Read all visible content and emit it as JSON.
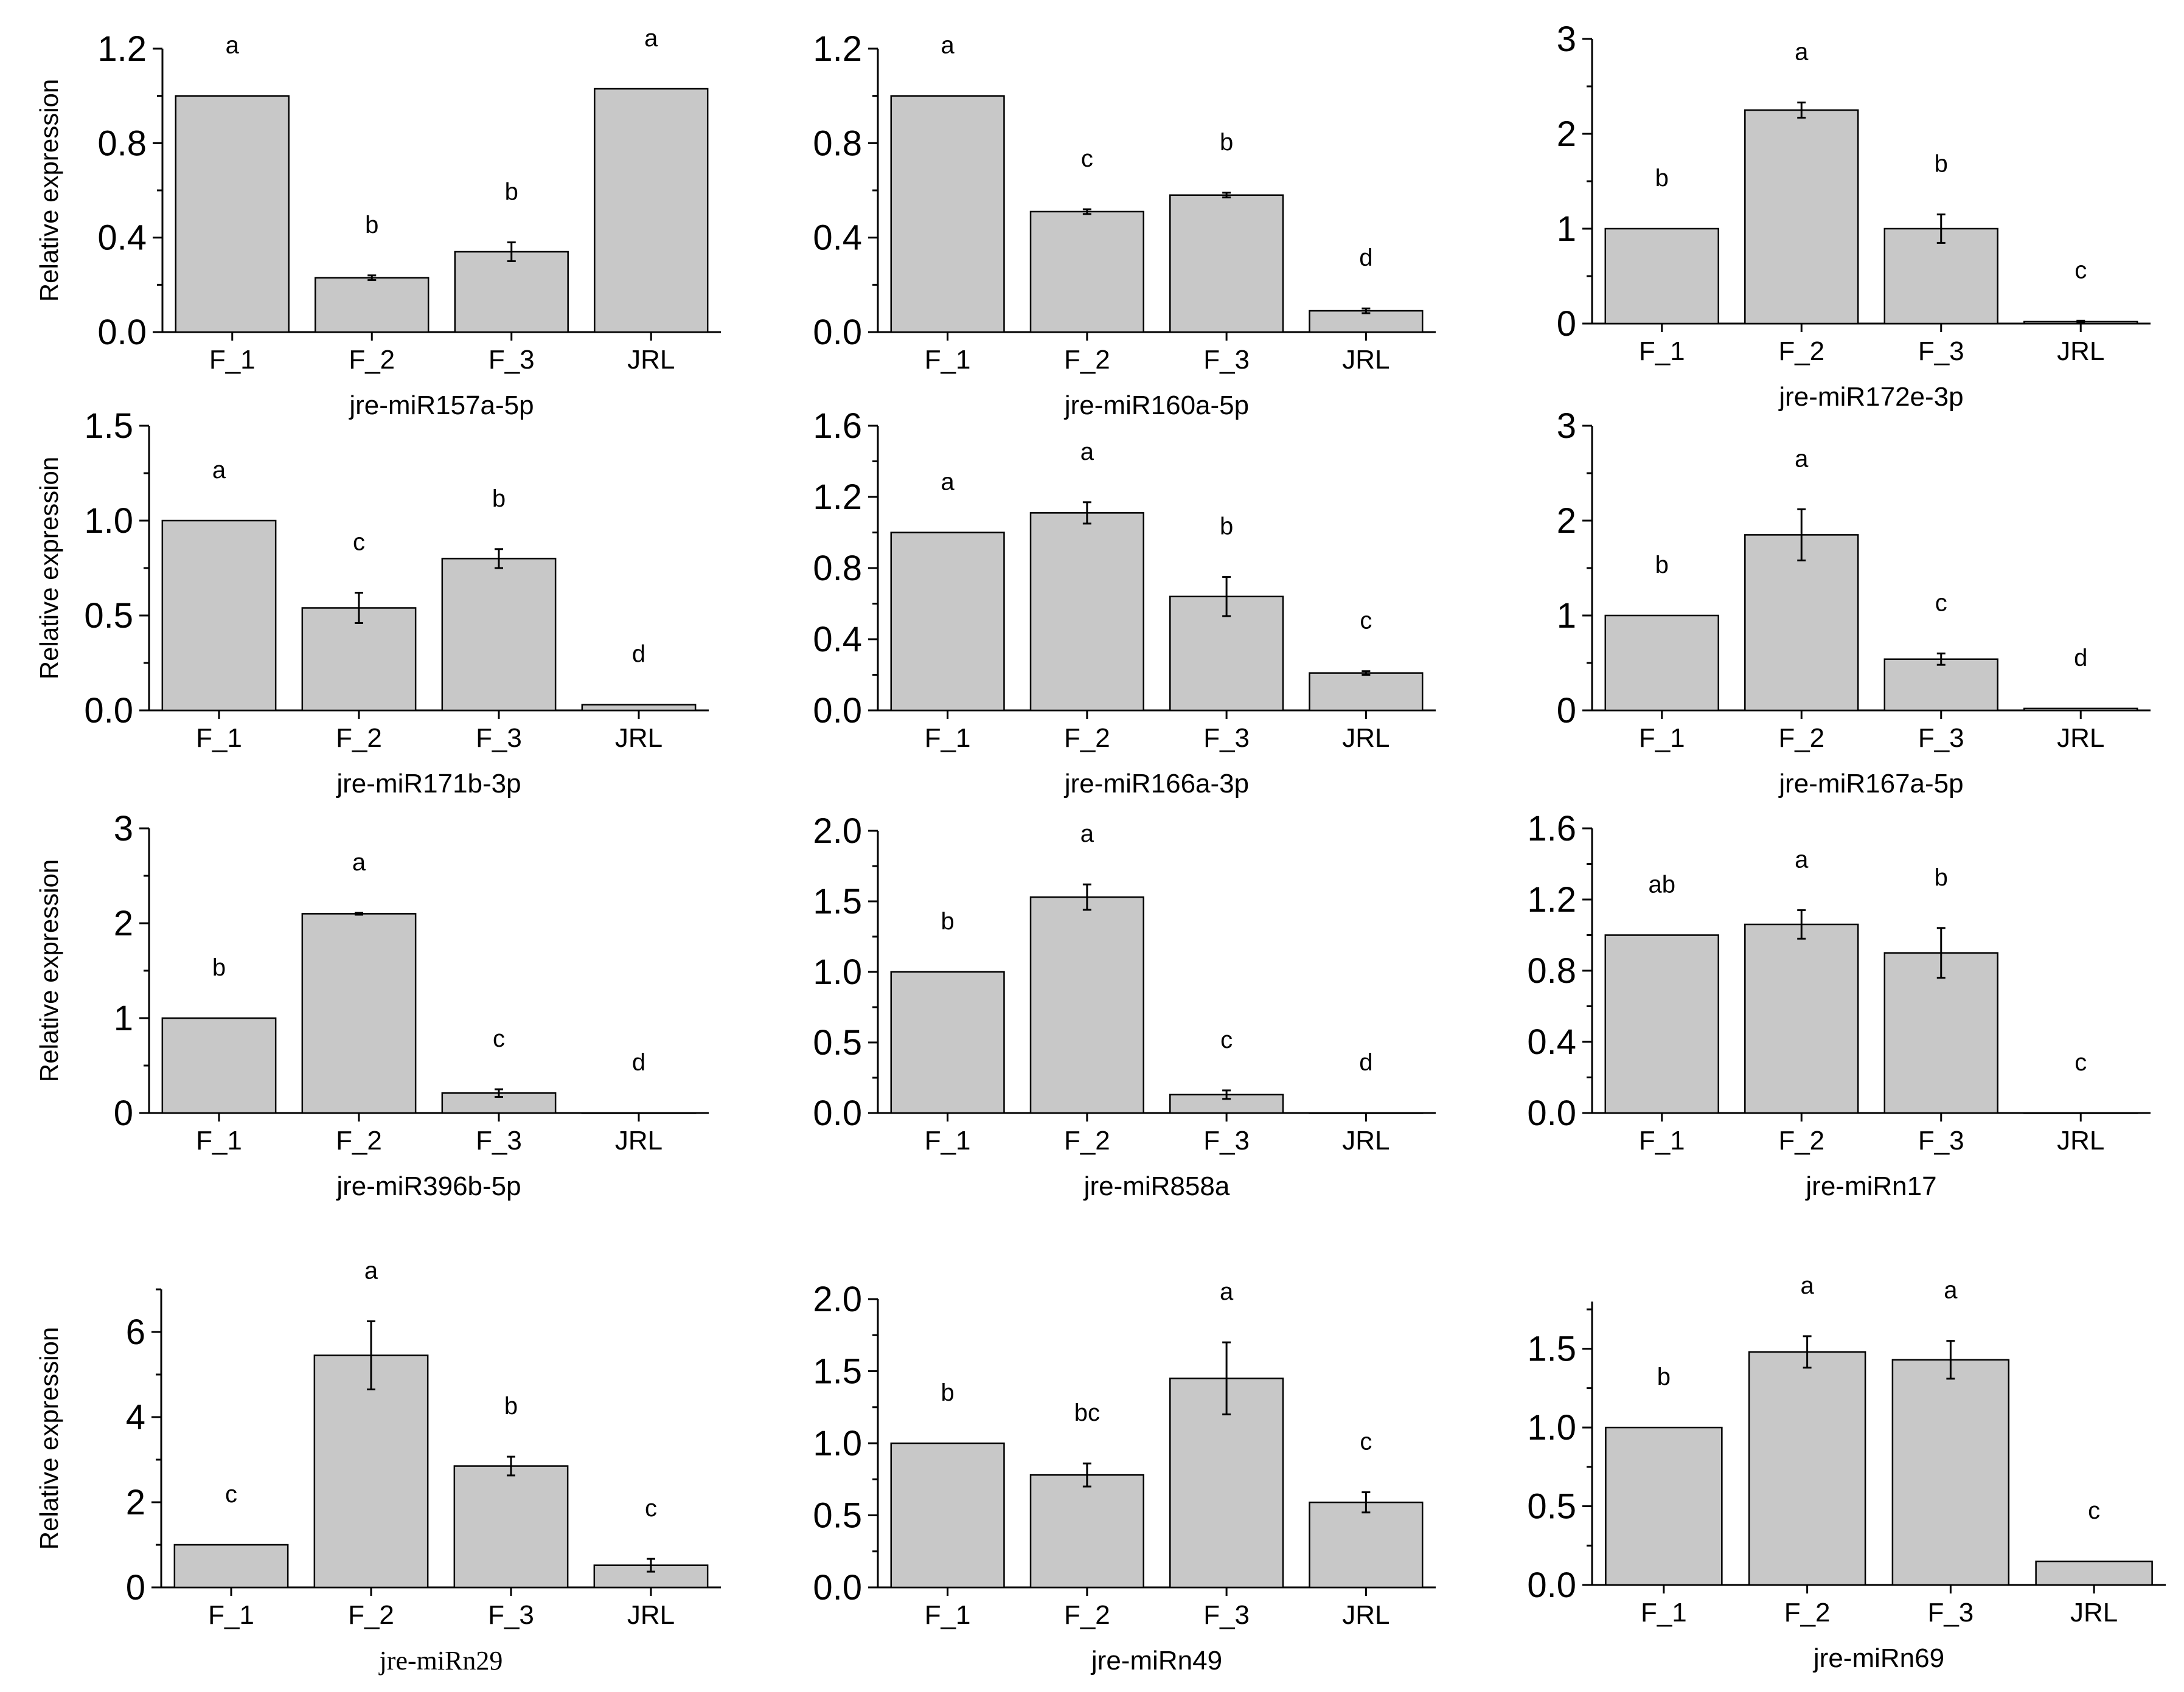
{
  "chart_data": [
    {
      "type": "bar",
      "title": "jre-miR157a-5p",
      "ylabel": "Relative expression",
      "categories": [
        "F_1",
        "F_2",
        "F_3",
        "JRL"
      ],
      "values": [
        1.0,
        0.23,
        0.34,
        1.03
      ],
      "errors": [
        0,
        0.01,
        0.04,
        0
      ],
      "letters": [
        "a",
        "b",
        "b",
        "a"
      ],
      "ylim": [
        0,
        1.2
      ],
      "yticks": [
        "0.0",
        "0.4",
        "0.8",
        "1.2"
      ]
    },
    {
      "type": "bar",
      "title": "jre-miR160a-5p",
      "ylabel": "",
      "categories": [
        "F_1",
        "F_2",
        "F_3",
        "JRL"
      ],
      "values": [
        1.0,
        0.51,
        0.58,
        0.09
      ],
      "errors": [
        0,
        0.01,
        0.01,
        0.01
      ],
      "letters": [
        "a",
        "c",
        "b",
        "d"
      ],
      "ylim": [
        0,
        1.2
      ],
      "yticks": [
        "0.0",
        "0.4",
        "0.8",
        "1.2"
      ]
    },
    {
      "type": "bar",
      "title": "jre-miR172e-3p",
      "ylabel": "",
      "categories": [
        "F_1",
        "F_2",
        "F_3",
        "JRL"
      ],
      "values": [
        1.0,
        2.25,
        1.0,
        0.02
      ],
      "errors": [
        0,
        0.08,
        0.15,
        0.01
      ],
      "letters": [
        "b",
        "a",
        "b",
        "c"
      ],
      "ylim": [
        0,
        3
      ],
      "yticks": [
        "0",
        "1",
        "2",
        "3"
      ]
    },
    {
      "type": "bar",
      "title": "jre-miR171b-3p",
      "ylabel": "Relative expression",
      "categories": [
        "F_1",
        "F_2",
        "F_3",
        "JRL"
      ],
      "values": [
        1.0,
        0.54,
        0.8,
        0.03
      ],
      "errors": [
        0,
        0.08,
        0.05,
        0
      ],
      "letters": [
        "a",
        "c",
        "b",
        "d"
      ],
      "ylim": [
        0,
        1.5
      ],
      "yticks": [
        "0.0",
        "0.5",
        "1.0",
        "1.5"
      ]
    },
    {
      "type": "bar",
      "title": "jre-miR166a-3p",
      "ylabel": "",
      "categories": [
        "F_1",
        "F_2",
        "F_3",
        "JRL"
      ],
      "values": [
        1.0,
        1.11,
        0.64,
        0.21
      ],
      "errors": [
        0,
        0.06,
        0.11,
        0.01
      ],
      "letters": [
        "a",
        "a",
        "b",
        "c"
      ],
      "ylim": [
        0,
        1.6
      ],
      "yticks": [
        "0.0",
        "0.4",
        "0.8",
        "1.2",
        "1.6"
      ]
    },
    {
      "type": "bar",
      "title": "jre-miR167a-5p",
      "ylabel": "",
      "categories": [
        "F_1",
        "F_2",
        "F_3",
        "JRL"
      ],
      "values": [
        1.0,
        1.85,
        0.54,
        0.02
      ],
      "errors": [
        0,
        0.27,
        0.06,
        0
      ],
      "letters": [
        "b",
        "a",
        "c",
        "d"
      ],
      "ylim": [
        0,
        3
      ],
      "yticks": [
        "0",
        "1",
        "2",
        "3"
      ]
    },
    {
      "type": "bar",
      "title": "jre-miR396b-5p",
      "ylabel": "Relative expression",
      "categories": [
        "F_1",
        "F_2",
        "F_3",
        "JRL"
      ],
      "values": [
        1.0,
        2.1,
        0.21,
        0
      ],
      "errors": [
        0,
        0.01,
        0.04,
        0
      ],
      "letters": [
        "b",
        "a",
        "c",
        "d"
      ],
      "ylim": [
        0,
        3
      ],
      "yticks": [
        "0",
        "1",
        "2",
        "3"
      ]
    },
    {
      "type": "bar",
      "title": "jre-miR858a",
      "ylabel": "",
      "categories": [
        "F_1",
        "F_2",
        "F_3",
        "JRL"
      ],
      "values": [
        1.0,
        1.53,
        0.13,
        0
      ],
      "errors": [
        0,
        0.09,
        0.03,
        0
      ],
      "letters": [
        "b",
        "a",
        "c",
        "d"
      ],
      "ylim": [
        0,
        2.0
      ],
      "yticks": [
        "0.0",
        "0.5",
        "1.0",
        "1.5",
        "2.0"
      ]
    },
    {
      "type": "bar",
      "title": "jre-miRn17",
      "ylabel": "",
      "categories": [
        "F_1",
        "F_2",
        "F_3",
        "JRL"
      ],
      "values": [
        1.0,
        1.06,
        0.9,
        0
      ],
      "errors": [
        0,
        0.08,
        0.14,
        0
      ],
      "letters": [
        "ab",
        "a",
        "b",
        "c"
      ],
      "ylim": [
        0,
        1.6
      ],
      "yticks": [
        "0.0",
        "0.4",
        "0.8",
        "1.2",
        "1.6"
      ]
    },
    {
      "type": "bar",
      "title": "jre-miRn29",
      "ylabel": "Relative expression",
      "categories": [
        "F_1",
        "F_2",
        "F_3",
        "JRL"
      ],
      "values": [
        1.0,
        5.45,
        2.85,
        0.52
      ],
      "errors": [
        0,
        0.8,
        0.22,
        0.15
      ],
      "letters": [
        "c",
        "a",
        "b",
        "c"
      ],
      "ylim": [
        0,
        7
      ],
      "yticks": [
        "0",
        "2",
        "4",
        "6"
      ]
    },
    {
      "type": "bar",
      "title": "jre-miRn49",
      "ylabel": "",
      "categories": [
        "F_1",
        "F_2",
        "F_3",
        "JRL"
      ],
      "values": [
        1.0,
        0.78,
        1.45,
        0.59
      ],
      "errors": [
        0,
        0.08,
        0.25,
        0.07
      ],
      "letters": [
        "b",
        "bc",
        "a",
        "c"
      ],
      "ylim": [
        0,
        2.0
      ],
      "yticks": [
        "0.0",
        "0.5",
        "1.0",
        "1.5",
        "2.0"
      ]
    },
    {
      "type": "bar",
      "title": "jre-miRn69",
      "ylabel": "",
      "categories": [
        "F_1",
        "F_2",
        "F_3",
        "JRL"
      ],
      "values": [
        1.0,
        1.48,
        1.43,
        0.15
      ],
      "errors": [
        0,
        0.1,
        0.12,
        0
      ],
      "letters": [
        "b",
        "a",
        "a",
        "c"
      ],
      "ylim": [
        0,
        1.8
      ],
      "yticks": [
        "0.0",
        "0.5",
        "1.0",
        "1.5"
      ]
    }
  ]
}
